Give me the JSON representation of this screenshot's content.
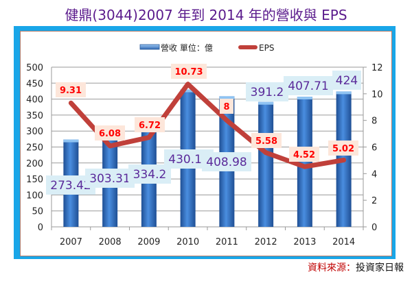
{
  "chart_data": {
    "type": "bar+line",
    "title": "健鼎(3044)2007 年到 2014 年的營收與 EPS",
    "categories": [
      "2007",
      "2008",
      "2009",
      "2010",
      "2011",
      "2012",
      "2013",
      "2014"
    ],
    "series": [
      {
        "name": "營收 單位：億",
        "type": "bar",
        "axis": "left",
        "color": "#3a78c8",
        "values": [
          273.42,
          303.31,
          334.2,
          430.15,
          408.98,
          391.2,
          407.71,
          424
        ],
        "labels": [
          "273.42",
          "303.31",
          "334.2",
          "430.15",
          "408.98",
          "391.2",
          "407.71",
          "424"
        ]
      },
      {
        "name": "EPS",
        "type": "line",
        "axis": "right",
        "color": "#c0403a",
        "values": [
          9.31,
          6.08,
          6.72,
          10.73,
          8,
          5.58,
          4.52,
          5.02
        ],
        "labels": [
          "9.31",
          "6.08",
          "6.72",
          "10.73",
          "8",
          "5.58",
          "4.52",
          "5.02"
        ]
      }
    ],
    "left_axis": {
      "range": [
        0,
        500
      ],
      "ticks": [
        "0",
        "50",
        "100",
        "150",
        "200",
        "250",
        "300",
        "350",
        "400",
        "450",
        "500"
      ]
    },
    "right_axis": {
      "range": [
        0,
        12
      ],
      "ticks": [
        "0",
        "2",
        "4",
        "6",
        "8",
        "10",
        "12"
      ]
    },
    "grid": true,
    "legend": "top"
  },
  "footer": {
    "source_label": "資料來源：",
    "source_name": "投資家日報"
  }
}
